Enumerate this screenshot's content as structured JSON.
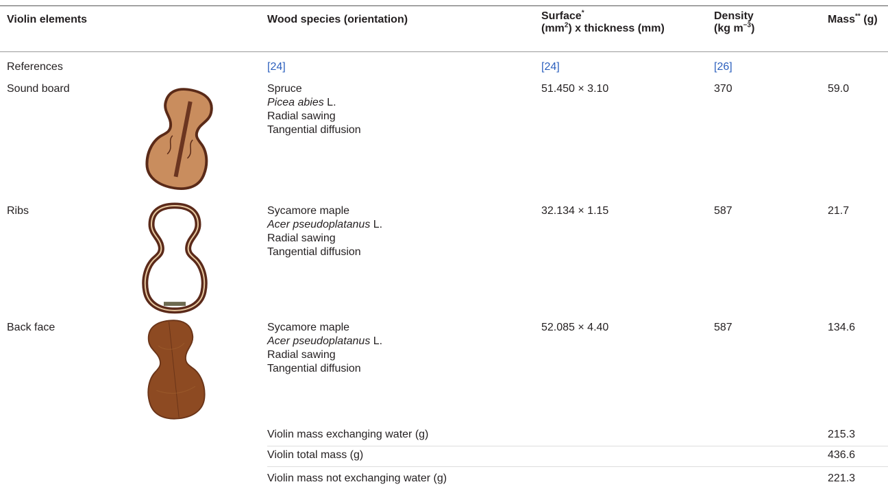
{
  "table": {
    "header": [
      [
        [
          {
            "text": "Violin elements"
          }
        ]
      ],
      [
        [
          {
            "text": "Wood species (orientation)"
          }
        ]
      ],
      [
        [
          {
            "text": "Surface",
            "sup": "*"
          }
        ],
        [
          {
            "text": "(mm",
            "sup": "2"
          },
          {
            "text": ") x thickness (mm)"
          }
        ]
      ],
      [
        [
          {
            "text": "Density"
          }
        ],
        [
          {
            "text": "(kg m",
            "sup": "−3"
          },
          {
            "text": ")"
          }
        ]
      ],
      [
        [
          {
            "text": "Mass",
            "sup": "**"
          },
          {
            "text": " (g)"
          }
        ]
      ]
    ],
    "references": {
      "label": "References",
      "cells": [
        "[24]",
        "[24]",
        "[26]"
      ]
    },
    "rows": [
      {
        "element": "Sound board",
        "species": "Spruce",
        "latin": "Picea abies",
        "authority": "L.",
        "sawing": "Radial sawing",
        "diffusion": "Tangential diffusion",
        "surface": "51.450 × 3.10",
        "density": "370",
        "mass": "59.0"
      },
      {
        "element": "Ribs",
        "species": "Sycamore maple",
        "latin": "Acer pseudoplatanus",
        "authority": "L.",
        "sawing": "Radial sawing",
        "diffusion": "Tangential diffusion",
        "surface": "32.134 × 1.15",
        "density": "587",
        "mass": "21.7"
      },
      {
        "element": "Back face",
        "species": "Sycamore maple",
        "latin": "Acer pseudoplatanus",
        "authority": "L.",
        "sawing": "Radial sawing",
        "diffusion": "Tangential diffusion",
        "surface": "52.085 × 4.40",
        "density": "587",
        "mass": "134.6"
      }
    ],
    "summary": [
      {
        "label": "Violin mass exchanging water (g)",
        "value": "215.3"
      },
      {
        "label": "Violin total mass (g)",
        "value": "436.6"
      },
      {
        "label": "Violin mass not exchanging water (g)",
        "value": "221.3"
      }
    ]
  }
}
